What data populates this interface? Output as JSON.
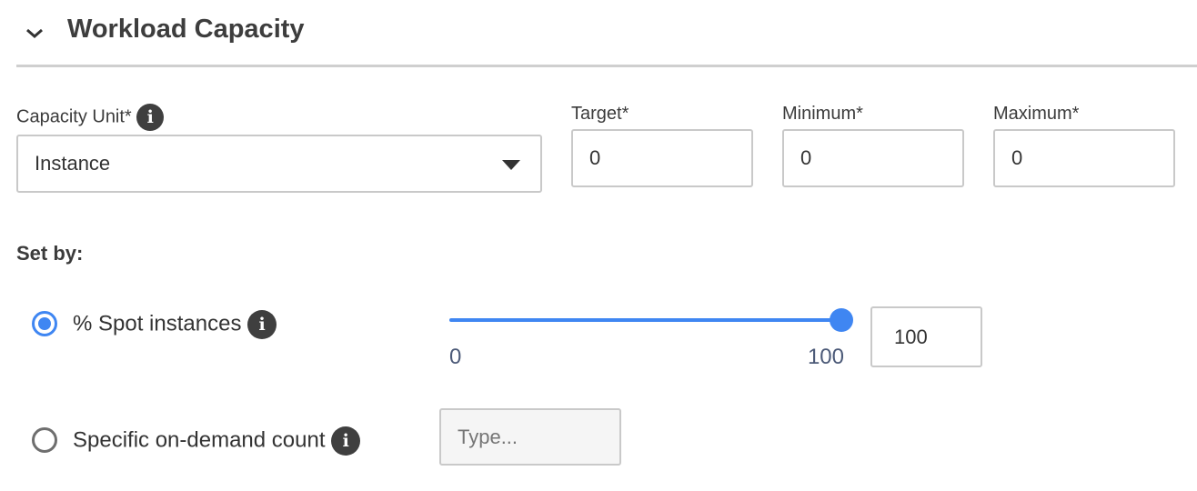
{
  "section": {
    "title": "Workload Capacity",
    "icon": "chevron-down-icon"
  },
  "capacity_unit": {
    "label": "Capacity Unit*",
    "selected": "Instance"
  },
  "target": {
    "label": "Target*",
    "value": "0"
  },
  "minimum": {
    "label": "Minimum*",
    "value": "0"
  },
  "maximum": {
    "label": "Maximum*",
    "value": "0"
  },
  "set_by": {
    "label": "Set by:",
    "spot": {
      "label": "% Spot instances",
      "selected": true,
      "slider_min": "0",
      "slider_max": "100",
      "slider_value": 100,
      "value": "100"
    },
    "on_demand": {
      "label": "Specific on-demand count",
      "selected": false,
      "placeholder": "Type..."
    }
  },
  "colors": {
    "accent": "#3f86f2"
  }
}
